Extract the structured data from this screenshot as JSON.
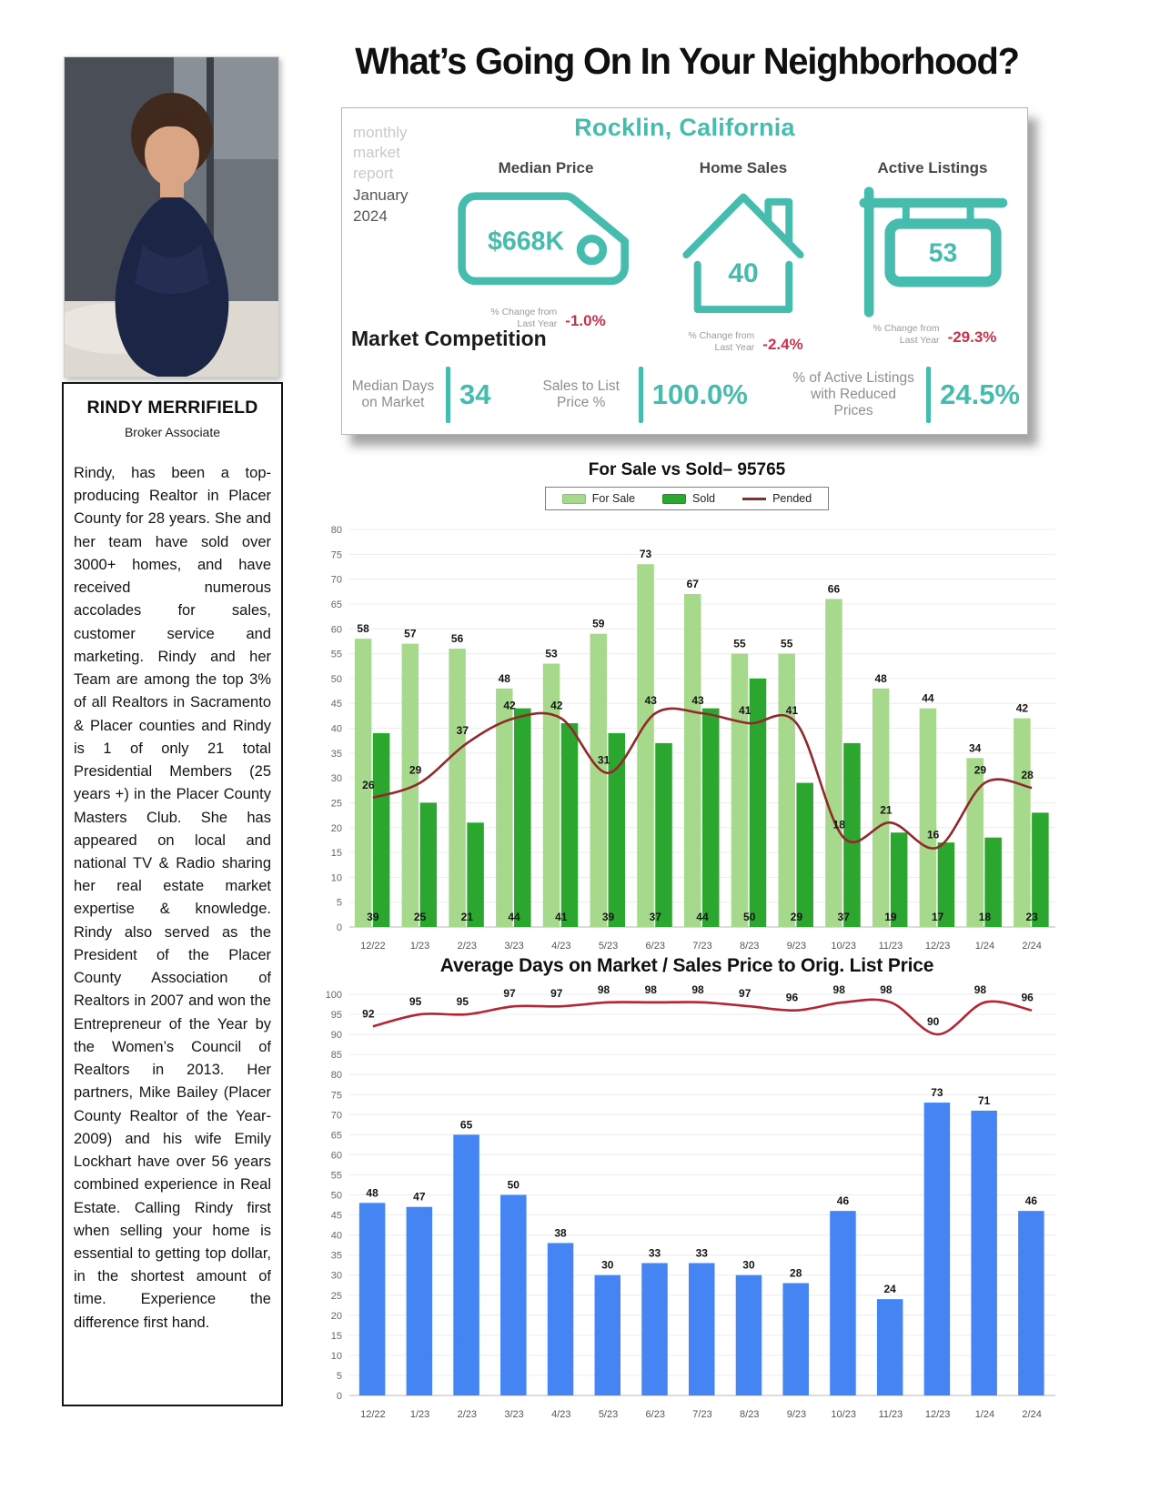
{
  "page": {
    "title": "What’s Going On In Your Neighborhood?"
  },
  "sidebar": {
    "name": "RINDY MERRIFIELD",
    "title": "Broker Associate",
    "bio": "Rindy, has been a top-producing Realtor in Placer County for 28 years. She and her team have sold over 3000+ homes, and have received numerous accolades for sales, customer service and marketing.  Rindy and her Team are among the top 3% of all Realtors in Sacramento & Placer counties and Rindy is 1 of only 21 total Presidential Members (25 years +) in the Placer County Masters Club. She has appeared on local and national TV & Radio sharing her real estate market expertise & knowledge.  Rindy also served as the President of the Placer County Association of Realtors in 2007 and won the Entrepreneur of the Year by the Women’s Council of Realtors in 2013.  Her partners, Mike Bailey (Placer County Realtor of the Year-2009) and his wife Emily Lockhart have over 56 years combined experience in Real Estate. Calling Rindy first when selling your home is essential to getting top dollar, in the shortest amount of time. Experience the difference first hand."
  },
  "report_card": {
    "eyebrow": [
      "monthly",
      "market",
      "report"
    ],
    "period_lines": [
      "January",
      "2024"
    ],
    "city": "Rocklin, California",
    "stats": [
      {
        "label": "Median Price",
        "value": "$668K",
        "change_label": "% Change from Last Year",
        "change": "-1.0%",
        "icon": "price-tag-icon"
      },
      {
        "label": "Home Sales",
        "value": "40",
        "change_label": "% Change from Last Year",
        "change": "-2.4%",
        "icon": "house-icon"
      },
      {
        "label": "Active Listings",
        "value": "53",
        "change_label": "% Change from Last Year",
        "change": "-29.3%",
        "icon": "sign-icon"
      }
    ],
    "competition": {
      "heading": "Market Competition",
      "metrics": [
        {
          "label": "Median Days on Market",
          "value": "34"
        },
        {
          "label": "Sales to List Price %",
          "value": "100.0%"
        },
        {
          "label": "% of Active Listings with Reduced Prices",
          "value": "24.5%"
        }
      ]
    },
    "colors": {
      "teal": "#46BCAE",
      "negative": "#CE3049"
    }
  },
  "chart_data": [
    {
      "type": "bar",
      "title": "For Sale vs Sold– 95765",
      "categories": [
        "12/22",
        "1/23",
        "2/23",
        "3/23",
        "4/23",
        "5/23",
        "6/23",
        "7/23",
        "8/23",
        "9/23",
        "10/23",
        "11/23",
        "12/23",
        "1/24",
        "2/24"
      ],
      "series": [
        {
          "name": "For Sale",
          "type": "bar",
          "color": "#a6d98b",
          "values": [
            58,
            57,
            56,
            48,
            53,
            59,
            73,
            67,
            55,
            55,
            66,
            48,
            44,
            34,
            42
          ]
        },
        {
          "name": "Sold",
          "type": "bar",
          "color": "#2ba62f",
          "values": [
            39,
            25,
            21,
            44,
            41,
            39,
            37,
            44,
            50,
            29,
            37,
            19,
            17,
            18,
            23
          ]
        },
        {
          "name": "Pended",
          "type": "line",
          "color": "#93282c",
          "values": [
            26,
            29,
            37,
            42,
            42,
            31,
            43,
            43,
            41,
            41,
            18,
            21,
            16,
            29,
            28
          ]
        }
      ],
      "ylim": [
        0,
        80
      ],
      "ytick": 5,
      "grid": true,
      "legend_position": "top"
    },
    {
      "type": "bar",
      "title": "Average Days on Market / Sales Price to Orig. List Price",
      "categories": [
        "12/22",
        "1/23",
        "2/23",
        "3/23",
        "4/23",
        "5/23",
        "6/23",
        "7/23",
        "8/23",
        "9/23",
        "10/23",
        "11/23",
        "12/23",
        "1/24",
        "2/24"
      ],
      "series": [
        {
          "name": "Average Days on Market",
          "type": "bar",
          "color": "#4485f3",
          "values": [
            48,
            47,
            65,
            50,
            38,
            30,
            33,
            33,
            30,
            28,
            46,
            24,
            73,
            71,
            46
          ]
        },
        {
          "name": "Sales Price to Orig. List Price",
          "type": "line",
          "color": "#b52532",
          "values": [
            92,
            95,
            95,
            97,
            97,
            98,
            98,
            98,
            97,
            96,
            98,
            98,
            90,
            98,
            96
          ]
        }
      ],
      "ylim": [
        0,
        100
      ],
      "ytick": 5,
      "grid": true,
      "legend_position": "none"
    }
  ]
}
